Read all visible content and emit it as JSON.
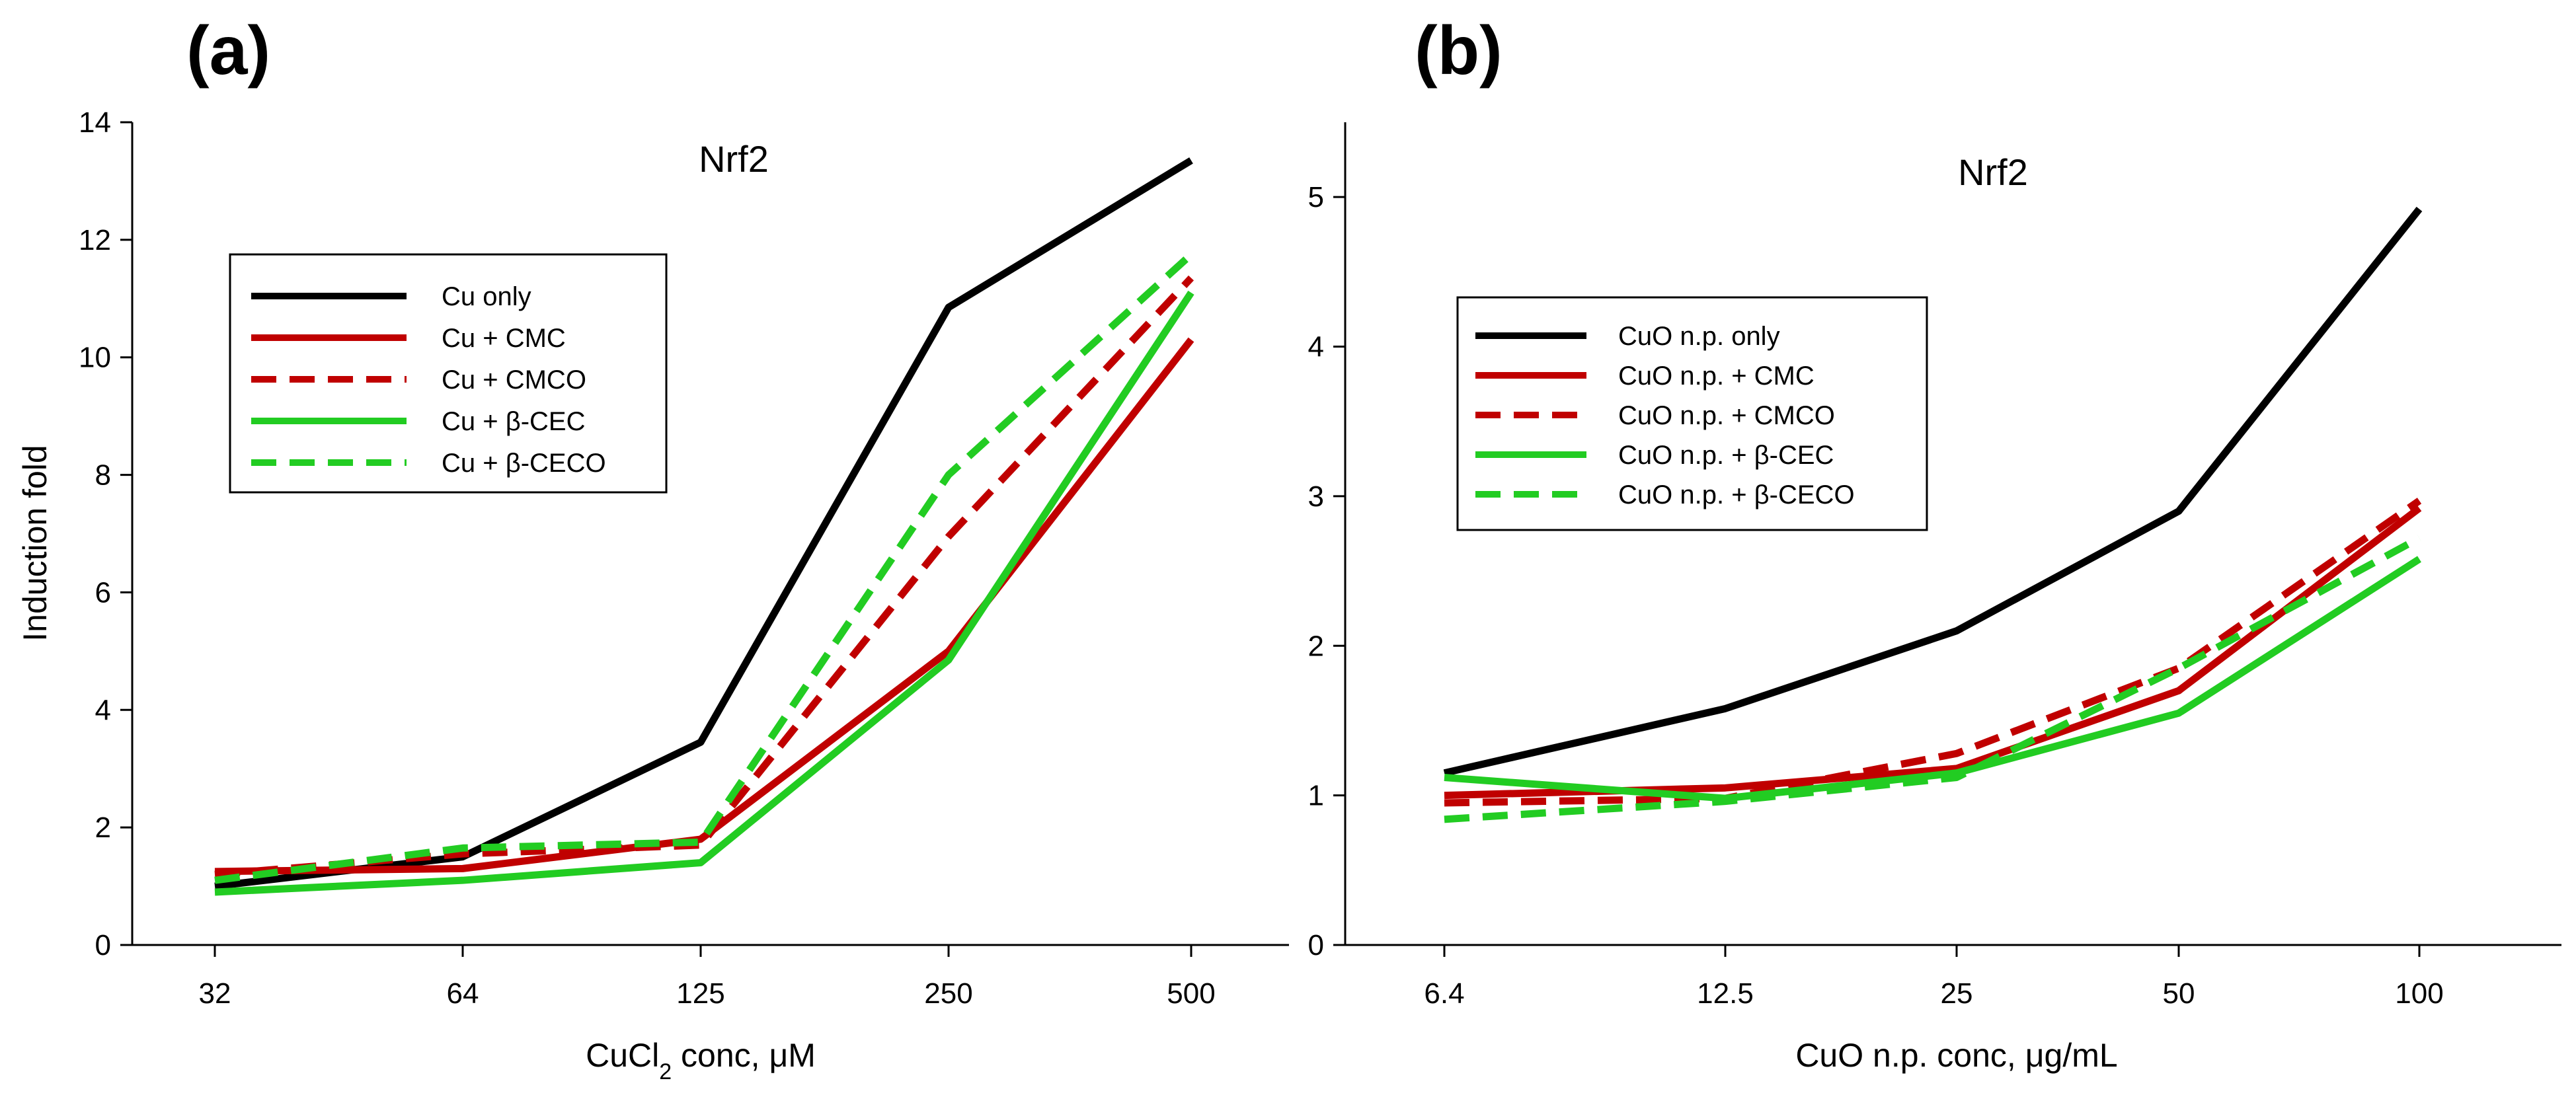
{
  "chart_data": [
    {
      "type": "line",
      "panel_label": "(a)",
      "title": "Nrf2",
      "xlabel": {
        "prefix": "CuCl",
        "sub": "2",
        "suffix": " conc, μM"
      },
      "ylabel": "Induction fold",
      "categories": [
        "32",
        "64",
        "125",
        "250",
        "500"
      ],
      "yticks": [
        "0",
        "2",
        "4",
        "6",
        "8",
        "10",
        "12",
        "14"
      ],
      "ylim": [
        0,
        14
      ],
      "legend_position": "upper-left",
      "series": [
        {
          "name": "Cu only",
          "color": "#000000",
          "dash": "solid",
          "values": [
            1.0,
            1.5,
            3.45,
            10.85,
            13.35
          ]
        },
        {
          "name": "Cu + CMC",
          "color": "#c00000",
          "dash": "solid",
          "values": [
            1.25,
            1.3,
            1.8,
            5.0,
            10.3
          ]
        },
        {
          "name": "Cu + CMCO",
          "color": "#c00000",
          "dash": "dashed",
          "values": [
            1.2,
            1.55,
            1.7,
            6.95,
            11.35
          ]
        },
        {
          "name": "Cu + β-CEC",
          "color": "#22cc22",
          "dash": "solid",
          "values": [
            0.9,
            1.1,
            1.4,
            4.85,
            11.1
          ]
        },
        {
          "name": "Cu + β-CECO",
          "color": "#22cc22",
          "dash": "dashed",
          "values": [
            1.1,
            1.65,
            1.75,
            8.0,
            11.75
          ]
        }
      ]
    },
    {
      "type": "line",
      "panel_label": "(b)",
      "title": "Nrf2",
      "xlabel": {
        "prefix": "CuO n.p. conc, μg/mL",
        "sub": "",
        "suffix": ""
      },
      "categories": [
        "6.4",
        "12.5",
        "25",
        "50",
        "100"
      ],
      "yticks": [
        "0",
        "1",
        "2",
        "3",
        "4",
        "5"
      ],
      "ylim": [
        0,
        5.5
      ],
      "legend_position": "upper-left",
      "series": [
        {
          "name": "CuO n.p. only",
          "color": "#000000",
          "dash": "solid",
          "values": [
            1.15,
            1.58,
            2.1,
            2.9,
            4.92
          ]
        },
        {
          "name": "CuO n.p. + CMC",
          "color": "#c00000",
          "dash": "solid",
          "values": [
            1.0,
            1.05,
            1.18,
            1.7,
            2.92
          ]
        },
        {
          "name": "CuO n.p. + CMCO",
          "color": "#c00000",
          "dash": "dashed",
          "values": [
            0.95,
            0.98,
            1.28,
            1.85,
            2.97
          ]
        },
        {
          "name": "CuO n.p. + β-CEC",
          "color": "#22cc22",
          "dash": "solid",
          "values": [
            1.12,
            0.98,
            1.15,
            1.55,
            2.58
          ]
        },
        {
          "name": "CuO n.p. + β-CECO",
          "color": "#22cc22",
          "dash": "dashed",
          "values": [
            0.84,
            0.96,
            1.12,
            1.85,
            2.72
          ]
        }
      ]
    }
  ]
}
